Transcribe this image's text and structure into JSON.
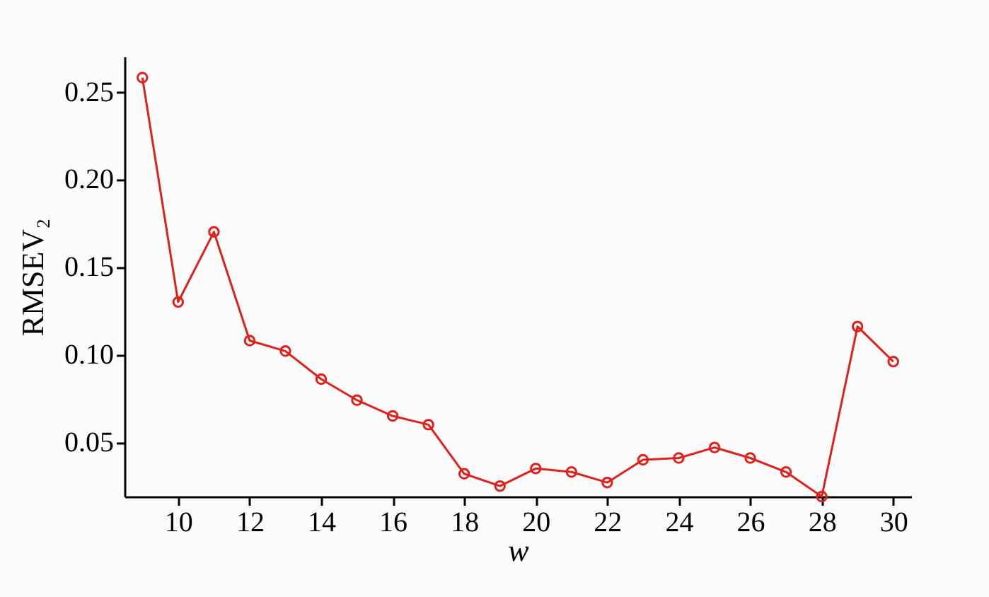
{
  "chart_data": {
    "type": "line",
    "xlabel": "w",
    "ylabel": "RMSEV₂",
    "x": [
      9,
      10,
      11,
      12,
      13,
      14,
      15,
      16,
      17,
      18,
      19,
      20,
      21,
      22,
      23,
      24,
      25,
      26,
      27,
      28,
      29,
      30
    ],
    "series": [
      {
        "color": "#e0201b",
        "values": [
          0.258,
          0.13,
          0.17,
          0.108,
          0.102,
          0.086,
          0.074,
          0.065,
          0.06,
          0.032,
          0.025,
          0.035,
          0.033,
          0.027,
          0.04,
          0.041,
          0.047,
          0.041,
          0.033,
          0.019,
          0.116,
          0.096
        ]
      }
    ],
    "xlim": [
      8.5,
      30.5
    ],
    "xticks": [
      10,
      12,
      14,
      16,
      18,
      20,
      22,
      24,
      26,
      28,
      30
    ],
    "ylim": [
      0.019,
      0.27
    ],
    "yticks": [
      {
        "value": 0.05,
        "label": "0.05"
      },
      {
        "value": 0.1,
        "label": "0.10"
      },
      {
        "value": 0.15,
        "label": "0.15"
      },
      {
        "value": 0.2,
        "label": "0.20"
      },
      {
        "value": 0.25,
        "label": "0.25"
      }
    ],
    "grid": false,
    "marker": "circle",
    "line_style": "solid"
  }
}
